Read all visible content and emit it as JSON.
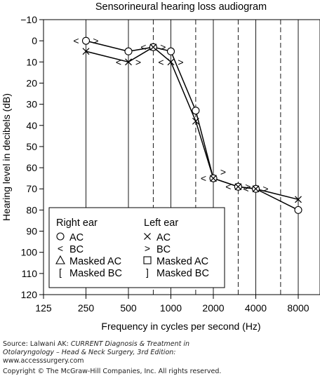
{
  "chart_data": {
    "type": "line",
    "title": "Sensorineural hearing loss audiogram",
    "xlabel": "Frequency in cycles per second (Hz)",
    "ylabel": "Hearing level in decibels (dB)",
    "x_scale": "log2",
    "x_ticks": [
      125,
      250,
      500,
      1000,
      2000,
      4000,
      8000
    ],
    "x_tick_labels": [
      "125",
      "250",
      "500",
      "1000",
      "2000",
      "4000",
      "8000"
    ],
    "x_dashed": [
      750,
      1500,
      3000,
      6000
    ],
    "y_inverted": true,
    "ylim": [
      -10,
      120
    ],
    "y_ticks": [
      -10,
      0,
      10,
      20,
      30,
      40,
      50,
      60,
      70,
      80,
      90,
      100,
      110,
      120
    ],
    "y_tick_labels": [
      "−10",
      "0",
      "10",
      "20",
      "30",
      "40",
      "50",
      "60",
      "70",
      "80",
      "90",
      "100",
      "110",
      "120"
    ],
    "series": [
      {
        "name": "AC",
        "ear": "right",
        "marker": "circle",
        "x": [
          250,
          500,
          750,
          1000,
          1500,
          2000,
          3000,
          4000,
          8000
        ],
        "y": [
          0,
          5,
          3,
          5,
          33,
          65,
          69,
          70,
          80
        ]
      },
      {
        "name": "AC",
        "ear": "left",
        "marker": "cross",
        "x": [
          250,
          500,
          750,
          1000,
          1500,
          2000,
          3000,
          4000,
          8000
        ],
        "y": [
          5,
          10,
          3,
          10,
          38,
          65,
          69,
          70,
          75
        ]
      }
    ],
    "bc_markers": [
      {
        "glyph": "<",
        "x": 250,
        "y": 0
      },
      {
        "glyph": ">",
        "x": 250,
        "y": 0
      },
      {
        "glyph": "<",
        "x": 500,
        "y": 10
      },
      {
        "glyph": ">",
        "x": 500,
        "y": 10
      },
      {
        "glyph": "<",
        "x": 750,
        "y": 3
      },
      {
        "glyph": ">",
        "x": 750,
        "y": 3
      },
      {
        "glyph": "<",
        "x": 1000,
        "y": 10
      },
      {
        "glyph": ">",
        "x": 1000,
        "y": 10
      },
      {
        "glyph": "<",
        "x": 2000,
        "y": 65
      },
      {
        "glyph": ">",
        "x": 2000,
        "y": 62
      },
      {
        "glyph": "<",
        "x": 3000,
        "y": 69
      },
      {
        "glyph": ">",
        "x": 3000,
        "y": 69
      },
      {
        "glyph": "<",
        "x": 4000,
        "y": 70
      },
      {
        "glyph": ">",
        "x": 4000,
        "y": 70
      }
    ],
    "legend": {
      "placement": "bottom-center",
      "right_header": "Right ear",
      "left_header": "Left ear",
      "right_items": [
        {
          "symbol": "circle",
          "label": "AC"
        },
        {
          "symbol": "<",
          "label": "BC"
        },
        {
          "symbol": "triangle",
          "label": "Masked AC"
        },
        {
          "symbol": "[",
          "label": "Masked BC"
        }
      ],
      "left_items": [
        {
          "symbol": "cross",
          "label": "AC"
        },
        {
          "symbol": ">",
          "label": "BC"
        },
        {
          "symbol": "square",
          "label": "Masked AC"
        },
        {
          "symbol": "]",
          "label": "Masked BC"
        }
      ]
    }
  },
  "source": {
    "prefix": "Source: Lalwani AK: ",
    "book_title": "CURRENT Diagnosis & Treatment in",
    "book_title_2": "Otolaryngology – Head & Neck Surgery, 3rd Edition:",
    "url": "www.accesssurgery.com",
    "copyright": "Copyright © The McGraw-Hill Companies, Inc. All rights reserved."
  }
}
